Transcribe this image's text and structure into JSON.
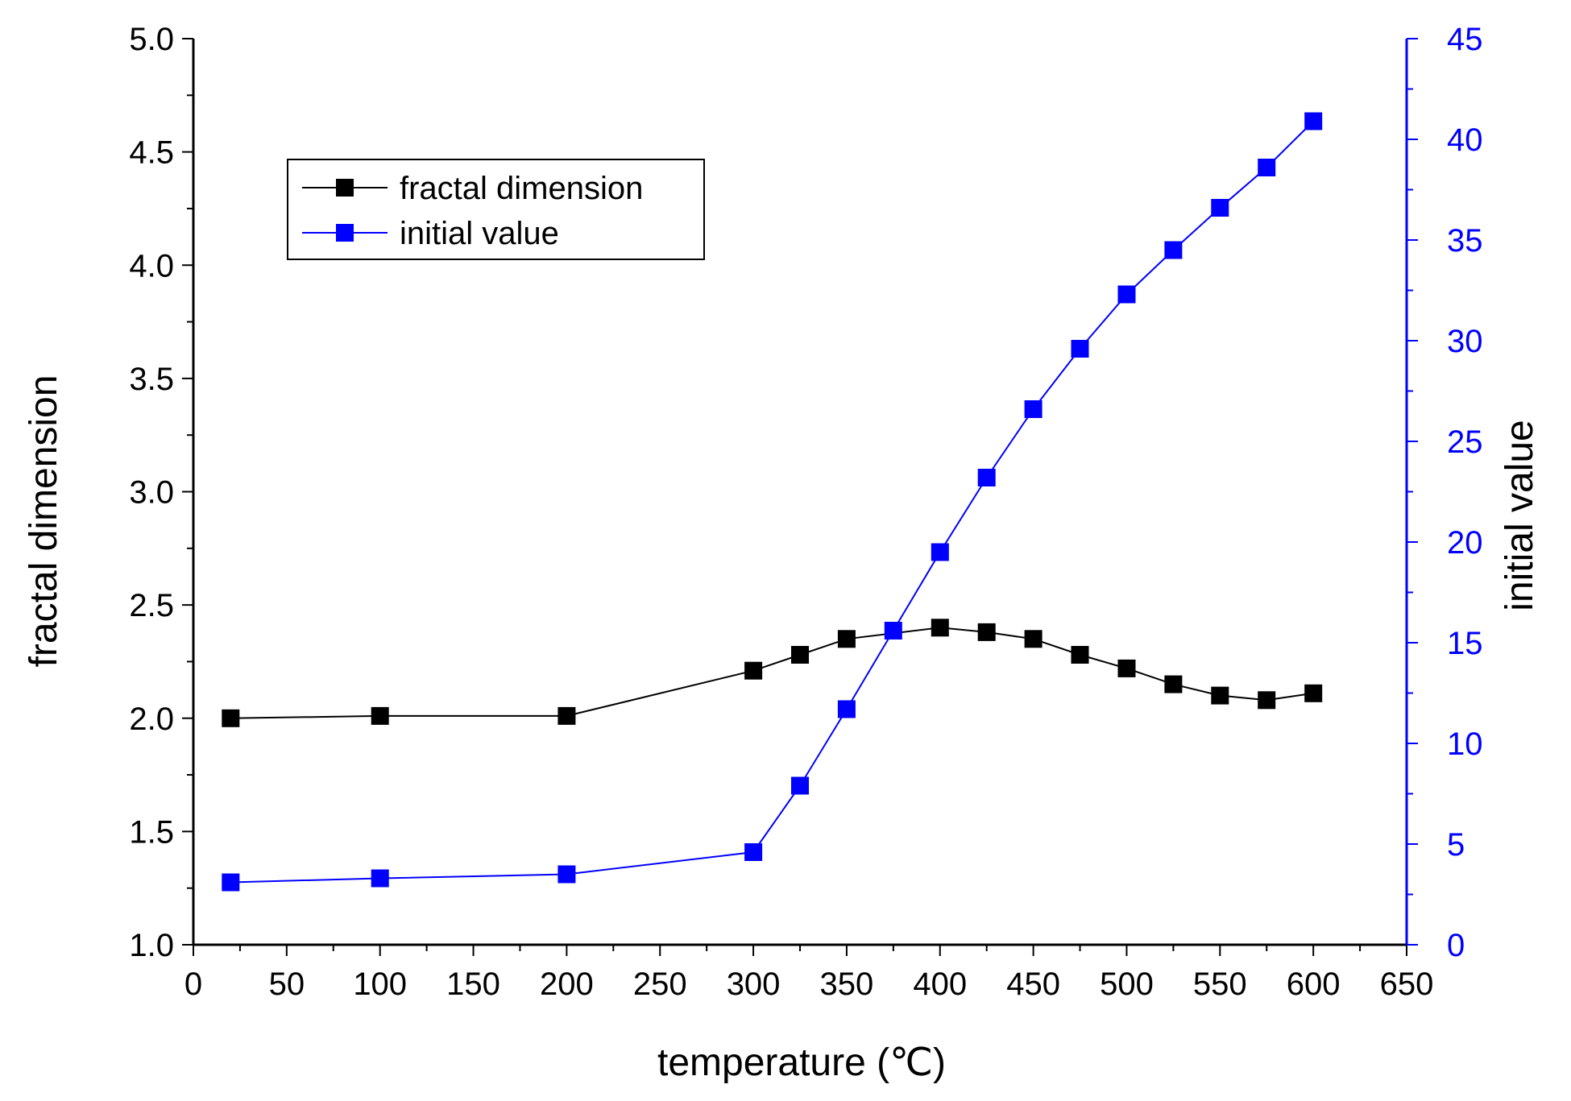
{
  "chart_data": {
    "type": "line",
    "title": "",
    "xlabel": "temperature (℃)",
    "ylabel": "fractal dimension",
    "y2label": "initial value",
    "xlim": [
      0,
      650
    ],
    "ylim": [
      1.0,
      5.0
    ],
    "y2lim": [
      0,
      45
    ],
    "x_ticks": [
      "0",
      "50",
      "100",
      "150",
      "200",
      "250",
      "300",
      "350",
      "400",
      "450",
      "500",
      "550",
      "600",
      "650"
    ],
    "y_ticks": [
      "1.0",
      "1.5",
      "2.0",
      "2.5",
      "3.0",
      "3.5",
      "4.0",
      "4.5",
      "5.0"
    ],
    "y2_ticks": [
      "0",
      "5",
      "10",
      "15",
      "20",
      "25",
      "30",
      "35",
      "40",
      "45"
    ],
    "legend_position": "top-left",
    "grid": false,
    "series": [
      {
        "name": "fractal dimension",
        "axis": "left",
        "color": "#000000",
        "marker": "square",
        "x": [
          20,
          100,
          200,
          300,
          325,
          350,
          400,
          425,
          450,
          475,
          500,
          525,
          550,
          575,
          600
        ],
        "y": [
          2.0,
          2.01,
          2.01,
          2.21,
          2.28,
          2.35,
          2.4,
          2.38,
          2.35,
          2.28,
          2.22,
          2.15,
          2.1,
          2.08,
          2.11
        ]
      },
      {
        "name": "initial value",
        "axis": "right",
        "color": "#0000ff",
        "marker": "square",
        "x": [
          20,
          100,
          200,
          300,
          325,
          350,
          375,
          400,
          425,
          450,
          475,
          500,
          525,
          550,
          575,
          600
        ],
        "y": [
          3.1,
          3.3,
          3.5,
          4.6,
          7.9,
          11.7,
          15.6,
          19.5,
          23.2,
          26.6,
          29.6,
          32.3,
          34.5,
          36.6,
          38.6,
          40.9
        ]
      }
    ]
  }
}
